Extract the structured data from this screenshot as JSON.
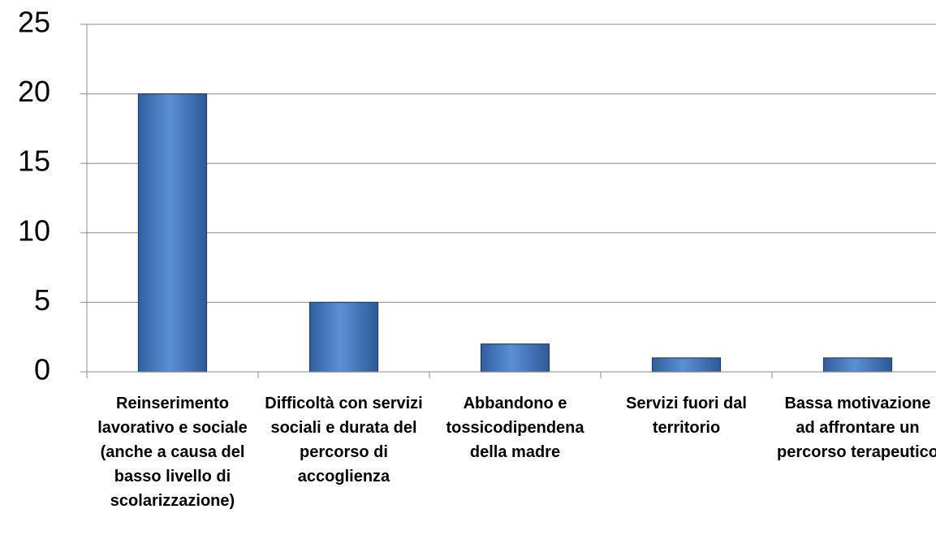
{
  "chart_data": {
    "type": "bar",
    "categories": [
      "Reinserimento lavorativo e sociale (anche a causa del basso livello di scolarizzazione)",
      "Difficoltà con servizi sociali e durata del percorso di accoglienza",
      "Abbandono e tossicodipendena della madre",
      "Servizi fuori dal territorio",
      "Bassa motivazione ad affrontare un percorso terapeutico"
    ],
    "values": [
      20,
      5,
      2,
      1,
      1
    ],
    "color": "#4f81bd",
    "ylim": [
      0,
      25
    ],
    "yticks": [
      0,
      5,
      10,
      15,
      20,
      25
    ],
    "grid": true
  }
}
